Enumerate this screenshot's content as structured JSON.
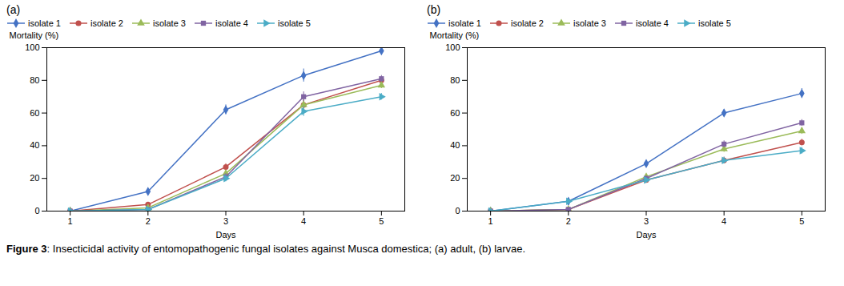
{
  "chart_data": [
    {
      "type": "line",
      "title": "(a)",
      "xlabel": "Days",
      "ylabel": "Mortality (%)",
      "x": [
        1,
        2,
        3,
        4,
        5
      ],
      "xlim": [
        0.7,
        5.3
      ],
      "xticks": [
        1,
        2,
        3,
        4,
        5
      ],
      "ylim": [
        0,
        100
      ],
      "yticks": [
        0,
        20,
        40,
        60,
        80,
        100
      ],
      "grid": false,
      "legend": "upper left",
      "series": [
        {
          "name": "isolate 1",
          "color": "#4472C4",
          "marker": "diamond",
          "values": [
            0,
            12,
            62,
            83,
            98
          ],
          "yerr": [
            0,
            1.5,
            3,
            4,
            2
          ]
        },
        {
          "name": "isolate 2",
          "color": "#C0504D",
          "marker": "circle",
          "values": [
            0,
            4,
            27,
            65,
            80
          ],
          "yerr": [
            0,
            1,
            2,
            3,
            2
          ]
        },
        {
          "name": "isolate 3",
          "color": "#9BBB59",
          "marker": "triangle",
          "values": [
            0,
            2,
            23,
            65,
            77
          ],
          "yerr": [
            0,
            0.5,
            2,
            3,
            2
          ]
        },
        {
          "name": "isolate 4",
          "color": "#8064A2",
          "marker": "square",
          "values": [
            0,
            1,
            21,
            70,
            81
          ],
          "yerr": [
            0,
            0.5,
            2,
            3,
            2
          ]
        },
        {
          "name": "isolate 5",
          "color": "#4BACC6",
          "marker": "triangle-right",
          "values": [
            0,
            1,
            20,
            61,
            70
          ],
          "yerr": [
            0,
            0.5,
            2,
            3,
            2
          ]
        }
      ]
    },
    {
      "type": "line",
      "title": "(b)",
      "xlabel": "Days",
      "ylabel": "Mortality (%)",
      "x": [
        1,
        2,
        3,
        4,
        5
      ],
      "xlim": [
        0.7,
        5.3
      ],
      "xticks": [
        1,
        2,
        3,
        4,
        5
      ],
      "ylim": [
        0,
        100
      ],
      "yticks": [
        0,
        20,
        40,
        60,
        80,
        100
      ],
      "grid": false,
      "legend": "upper left",
      "series": [
        {
          "name": "isolate 1",
          "color": "#4472C4",
          "marker": "diamond",
          "values": [
            0,
            6,
            29,
            60,
            72
          ],
          "yerr": [
            0,
            1,
            2,
            2,
            3
          ]
        },
        {
          "name": "isolate 2",
          "color": "#C0504D",
          "marker": "circle",
          "values": [
            0,
            1,
            19,
            31,
            42
          ],
          "yerr": [
            0,
            0.5,
            1.5,
            2,
            2
          ]
        },
        {
          "name": "isolate 3",
          "color": "#9BBB59",
          "marker": "triangle",
          "values": [
            0,
            1,
            21,
            38,
            49
          ],
          "yerr": [
            0,
            0.5,
            1.5,
            2,
            2
          ]
        },
        {
          "name": "isolate 4",
          "color": "#8064A2",
          "marker": "square",
          "values": [
            0,
            1,
            20,
            41,
            54
          ],
          "yerr": [
            0,
            0.5,
            1.5,
            2,
            2
          ]
        },
        {
          "name": "isolate 5",
          "color": "#4BACC6",
          "marker": "triangle-right",
          "values": [
            0,
            6,
            19,
            31,
            37
          ],
          "yerr": [
            0,
            0.5,
            1.5,
            2,
            2
          ]
        }
      ]
    }
  ],
  "caption": "Figure 3: Insecticidal activity of entomopathogenic fungal isolates against Musca domestica; (a) adult, (b) larvae."
}
